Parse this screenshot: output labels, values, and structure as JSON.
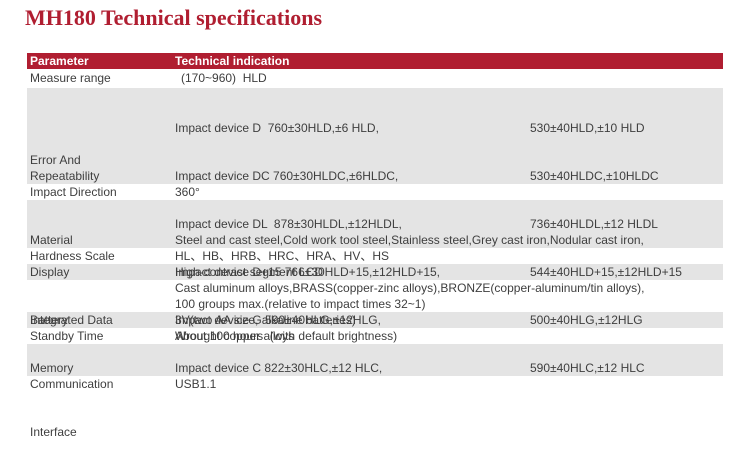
{
  "page_title": "MH180 Technical specifications",
  "colors": {
    "accent_red": "#B01E31",
    "row_gray": "#E4E4E4",
    "text": "#3E3E3E",
    "header_text": "#FFFFFF",
    "background": "#FFFFFF"
  },
  "table": {
    "header": {
      "parameter": "Parameter",
      "indication": "Technical indication"
    },
    "rows": {
      "measure_range": {
        "param": "Measure range",
        "value": "(170~960)  HLD"
      },
      "error_repeatability": {
        "param_line1": "Error And",
        "param_line2": "Repeatability",
        "lines": [
          {
            "left": "Impact device D  760±30HLD,±6 HLD,",
            "right": "530±40HLD,±10 HLD"
          },
          {
            "left": "Impact device DC 760±30HLDC,±6HLDC,",
            "right": "530±40HLDC,±10HLDC"
          },
          {
            "left": "Impact device DL  878±30HLDL,±12HLDL,",
            "right": "736±40HLDL,±12 HLDL"
          },
          {
            "left": "Impact device D+15 766±30HLD+15,±12HLD+15,",
            "right": "544±40HLD+15,±12HLD+15"
          },
          {
            "left": "Impact device G 590±40HLG,±12HLG,",
            "right": "500±40HLG,±12HLG"
          },
          {
            "left": "Impact device C 822±30HLC,±12 HLC,",
            "right": "590±40HLC,±12 HLC"
          }
        ]
      },
      "impact_direction": {
        "param": "Impact Direction",
        "value": "360°"
      },
      "material": {
        "param": "Material",
        "value_line1": "Steel and cast steel,Cold work tool steel,Stainless steel,Grey cast iron,Nodular cast iron,",
        "value_line2": "Cast aluminum alloys,BRASS(copper-zinc alloys),BRONZE(copper-aluminum/tin alloys),",
        "value_line3": "Wrought copper alloys"
      },
      "hardness_scale": {
        "param": "Hardness Scale",
        "value": "HL、HB、HRB、HRC、HRA、HV、HS"
      },
      "display": {
        "param": "Display",
        "value": "High-contrast segment LCD"
      },
      "integrated_data_memory": {
        "param_line1": "Integrated Data",
        "param_line2": "Memory",
        "value": "100 groups max.(relative to impact times 32~1)"
      },
      "battery": {
        "param": "Battery",
        "value": "3V(two AA size, alkaline batteries)"
      },
      "standby_time": {
        "param": "Standby Time",
        "value": "About 100 hours  (with default brightness)"
      },
      "communication_interface": {
        "param_line1": "Communication",
        "param_line2": "Interface",
        "value": "USB1.1"
      }
    }
  }
}
